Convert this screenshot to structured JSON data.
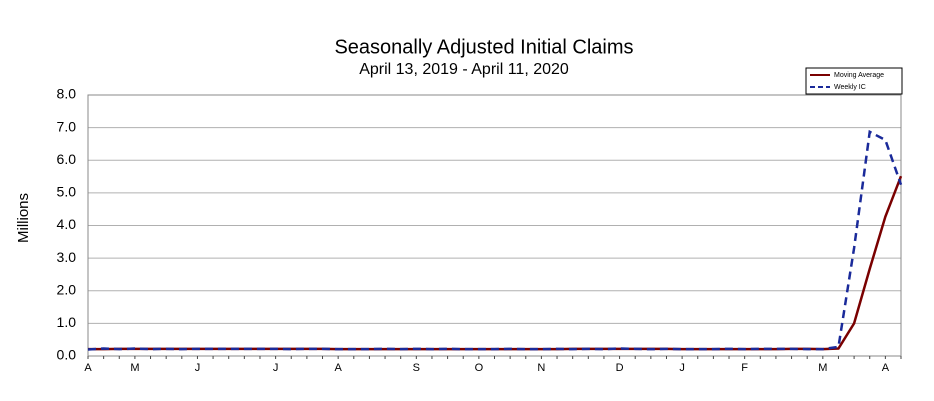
{
  "chart_data": {
    "type": "line",
    "title": "Seasonally Adjusted Initial Claims",
    "subtitle": "April 13, 2019 - April 11, 2020",
    "y_label": "Millions",
    "categories": [
      "A",
      null,
      null,
      "M",
      null,
      null,
      null,
      "J",
      null,
      null,
      null,
      null,
      "J",
      null,
      null,
      null,
      "A",
      null,
      null,
      null,
      null,
      "S",
      null,
      null,
      null,
      "O",
      null,
      null,
      null,
      "N",
      null,
      null,
      null,
      null,
      "D",
      null,
      null,
      null,
      "J",
      null,
      null,
      null,
      "F",
      null,
      null,
      null,
      null,
      "M",
      null,
      null,
      null,
      "A",
      null
    ],
    "series": [
      {
        "name": "Moving Average",
        "color": "#7a0000",
        "dash": false,
        "values": [
          0.21,
          0.21,
          0.22,
          0.22,
          0.22,
          0.22,
          0.22,
          0.22,
          0.22,
          0.22,
          0.22,
          0.22,
          0.22,
          0.22,
          0.22,
          0.22,
          0.21,
          0.21,
          0.21,
          0.21,
          0.21,
          0.21,
          0.21,
          0.21,
          0.21,
          0.21,
          0.21,
          0.21,
          0.21,
          0.21,
          0.21,
          0.22,
          0.22,
          0.22,
          0.22,
          0.22,
          0.22,
          0.22,
          0.21,
          0.21,
          0.21,
          0.21,
          0.21,
          0.21,
          0.21,
          0.22,
          0.22,
          0.21,
          0.23,
          1.0,
          2.67,
          4.27,
          5.51
        ]
      },
      {
        "name": "Weekly IC",
        "color": "#1a2a9a",
        "dash": true,
        "values": [
          0.2,
          0.23,
          0.21,
          0.23,
          0.21,
          0.22,
          0.21,
          0.22,
          0.22,
          0.22,
          0.22,
          0.22,
          0.22,
          0.21,
          0.22,
          0.22,
          0.21,
          0.21,
          0.21,
          0.22,
          0.21,
          0.22,
          0.21,
          0.22,
          0.21,
          0.21,
          0.21,
          0.22,
          0.21,
          0.21,
          0.22,
          0.21,
          0.22,
          0.21,
          0.23,
          0.22,
          0.21,
          0.22,
          0.21,
          0.21,
          0.21,
          0.22,
          0.21,
          0.22,
          0.22,
          0.22,
          0.21,
          0.21,
          0.28,
          3.31,
          6.87,
          6.62,
          5.25
        ]
      }
    ],
    "ylim": [
      0,
      8
    ],
    "yticks": [
      {
        "value": 0,
        "label": "0.0"
      },
      {
        "value": 1,
        "label": "1.0"
      },
      {
        "value": 2,
        "label": "2.0"
      },
      {
        "value": 3,
        "label": "3.0"
      },
      {
        "value": 4,
        "label": "4.0"
      },
      {
        "value": 5,
        "label": "5.0"
      },
      {
        "value": 6,
        "label": "6.0"
      },
      {
        "value": 7,
        "label": "7.0"
      },
      {
        "value": 8,
        "label": "8.0"
      }
    ],
    "grid": true,
    "legend": "top-right"
  }
}
